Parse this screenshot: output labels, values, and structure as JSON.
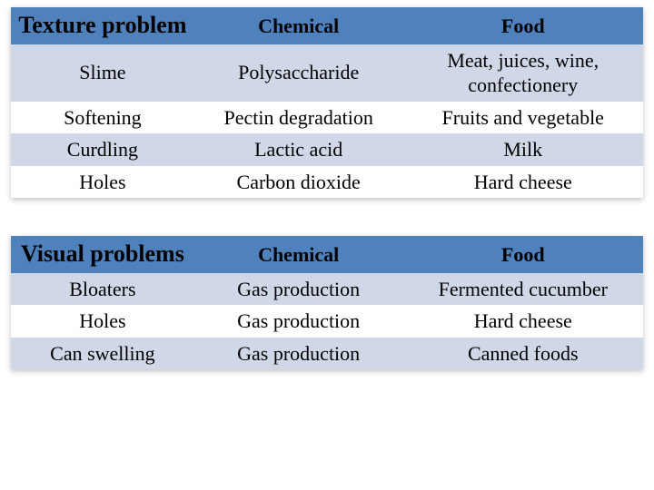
{
  "table1": {
    "columns": [
      "Texture problem",
      "Chemical",
      "Food"
    ],
    "rows": [
      [
        "Slime",
        "Polysaccharide",
        "Meat, juices, wine, confectionery"
      ],
      [
        "Softening",
        "Pectin degradation",
        "Fruits and vegetable"
      ],
      [
        "Curdling",
        "Lactic acid",
        "Milk"
      ],
      [
        "Holes",
        "Carbon dioxide",
        "Hard cheese"
      ]
    ],
    "header_bg": "#4f81bd",
    "stripe_bg": "#d0d8e8",
    "text_color": "#000000",
    "col_widths_pct": [
      29,
      33,
      38
    ],
    "header_fontsize_pt": 20,
    "body_fontsize_pt": 17
  },
  "table2": {
    "columns": [
      "Visual problems",
      "Chemical",
      "Food"
    ],
    "rows": [
      [
        "Bloaters",
        "Gas production",
        "Fermented cucumber"
      ],
      [
        "Holes",
        "Gas production",
        "Hard cheese"
      ],
      [
        "Can swelling",
        "Gas production",
        "Canned foods"
      ]
    ],
    "header_bg": "#4f81bd",
    "stripe_bg": "#d0d8e8",
    "text_color": "#000000",
    "col_widths_pct": [
      29,
      33,
      38
    ],
    "header_fontsize_pt": 20,
    "body_fontsize_pt": 17
  }
}
